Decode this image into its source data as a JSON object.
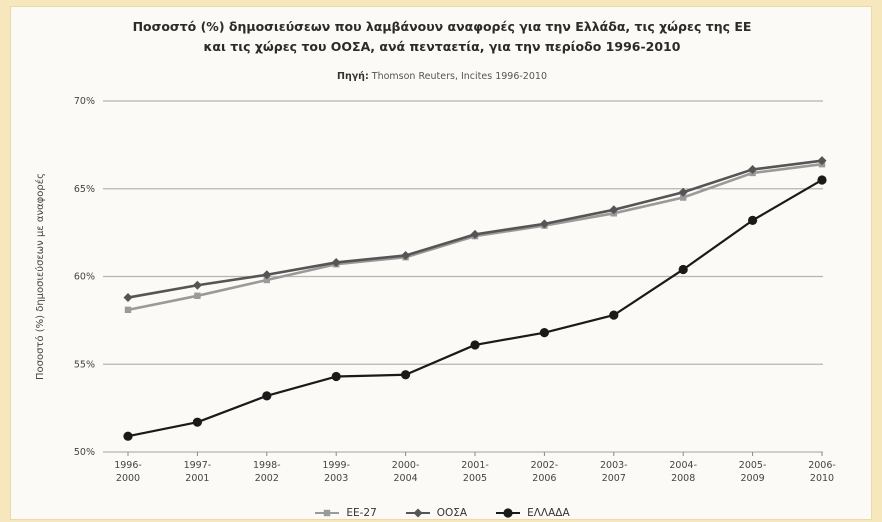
{
  "chart_data": {
    "type": "line",
    "title_line1": "Ποσοστό (%) δημοσιεύσεων που λαμβάνουν αναφορές για την Ελλάδα, τις χώρες της ΕΕ",
    "title_line2": "και τις χώρες του ΟΟΣΑ, ανά πενταετία, για την περίοδο 1996-2010",
    "source_label": "Πηγή:",
    "source_text": "Thomson Reuters, Incites 1996-2010",
    "ylabel": "Ποσοστό (%) δημοσιεύσεων με αναφορές",
    "xlabel": "",
    "ylim": [
      50,
      70
    ],
    "yticks": [
      "50%",
      "55%",
      "60%",
      "65%",
      "70%"
    ],
    "grid": true,
    "legend_position": "bottom",
    "categories": [
      [
        "1996-",
        "2000"
      ],
      [
        "1997-",
        "2001"
      ],
      [
        "1998-",
        "2002"
      ],
      [
        "1999-",
        "2003"
      ],
      [
        "2000-",
        "2004"
      ],
      [
        "2001-",
        "2005"
      ],
      [
        "2002-",
        "2006"
      ],
      [
        "2003-",
        "2007"
      ],
      [
        "2004-",
        "2008"
      ],
      [
        "2005-",
        "2009"
      ],
      [
        "2006-",
        "2010"
      ]
    ],
    "series": [
      {
        "name": "ΕΕ-27",
        "color": "#9a9a9a",
        "marker": "square",
        "values": [
          58.1,
          58.9,
          59.8,
          60.7,
          61.1,
          62.3,
          62.9,
          63.6,
          64.5,
          65.9,
          66.4
        ]
      },
      {
        "name": "ΟΟΣΑ",
        "color": "#555555",
        "marker": "diamond",
        "values": [
          58.8,
          59.5,
          60.1,
          60.8,
          61.2,
          62.4,
          63.0,
          63.8,
          64.8,
          66.1,
          66.6
        ]
      },
      {
        "name": "ΕΛΛΑΔΑ",
        "color": "#1a1a1a",
        "marker": "circle",
        "values": [
          50.9,
          51.7,
          53.2,
          54.3,
          54.4,
          56.1,
          56.8,
          57.8,
          60.4,
          63.2,
          65.5
        ]
      }
    ]
  }
}
